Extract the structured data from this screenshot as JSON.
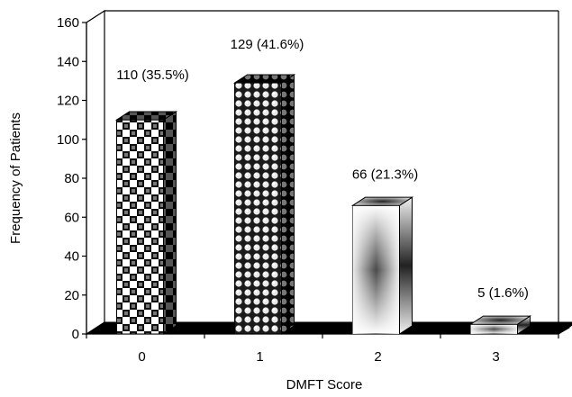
{
  "chart_data": {
    "type": "bar",
    "style": "3d",
    "categories": [
      "0",
      "1",
      "2",
      "3"
    ],
    "values": [
      110,
      129,
      66,
      5
    ],
    "data_labels": [
      "110 (35.5%)",
      "129 (41.6%)",
      "66 (21.3%)",
      "5 (1.6%)"
    ],
    "title": "",
    "xlabel": "DMFT Score",
    "ylabel": "Frequency of Patients",
    "ylim": [
      0,
      160
    ],
    "yticks": [
      "0",
      "20",
      "40",
      "60",
      "80",
      "100",
      "120",
      "140",
      "160"
    ],
    "grid": false,
    "legend": "none",
    "bar_patterns": [
      "checker",
      "dots",
      "gradient",
      "gradient"
    ]
  }
}
